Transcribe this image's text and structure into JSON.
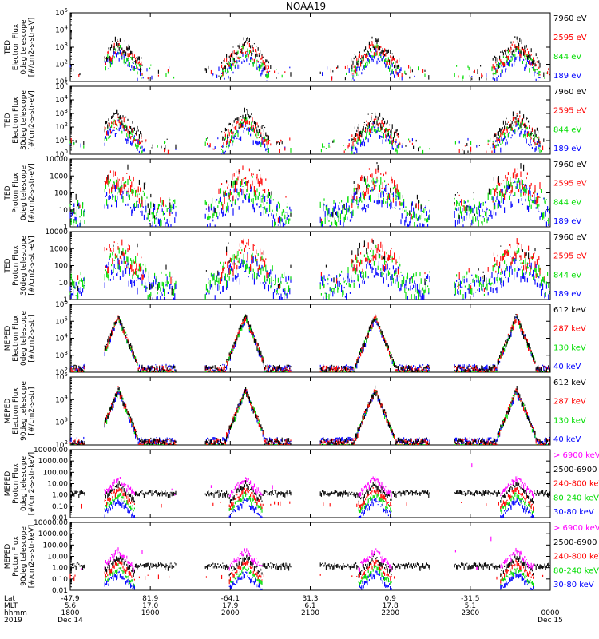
{
  "title": "NOAA19",
  "colors": {
    "black": "#000000",
    "red": "#ff0000",
    "green": "#00dd00",
    "blue": "#0000ff",
    "magenta": "#ff00ff"
  },
  "footer": {
    "row_labels": [
      "Lat",
      "MLT",
      "hhmm",
      "2019"
    ],
    "ticks": [
      {
        "time": "1800",
        "lat": "-47.9",
        "mlt": "5.6",
        "date": "Dec 14"
      },
      {
        "time": "1900",
        "lat": "81.9",
        "mlt": "17.0",
        "date": ""
      },
      {
        "time": "2000",
        "lat": "-64.1",
        "mlt": "17.9",
        "date": ""
      },
      {
        "time": "2100",
        "lat": "31.3",
        "mlt": "6.1",
        "date": ""
      },
      {
        "time": "2200",
        "lat": "0.9",
        "mlt": "17.8",
        "date": ""
      },
      {
        "time": "2300",
        "lat": "-31.5",
        "mlt": "5.1",
        "date": ""
      },
      {
        "time": "0000",
        "lat": "",
        "mlt": "",
        "date": "Dec 15"
      }
    ]
  },
  "chart_data": [
    {
      "type": "scatter",
      "ylabel_lines": [
        "TED",
        "Electron Flux",
        "0deg telescope",
        "[#/cm2-s-str-eV]"
      ],
      "ytick_labels": [
        "10^1",
        "10^2",
        "10^3",
        "10^4",
        "10^5"
      ],
      "ylim": [
        1,
        100000
      ],
      "log": true,
      "legend": [
        {
          "text": "7960 eV",
          "color": "black"
        },
        {
          "text": "2595 eV",
          "color": "red"
        },
        {
          "text": "844 eV",
          "color": "green"
        },
        {
          "text": "189 eV",
          "color": "blue"
        }
      ]
    },
    {
      "type": "scatter",
      "ylabel_lines": [
        "TED",
        "Electron Flux",
        "30deg telescope",
        "[#/cm2-s-str-eV]"
      ],
      "ytick_labels": [
        "10^0",
        "10^1",
        "10^2",
        "10^3",
        "10^4",
        "10^5"
      ],
      "ylim": [
        1,
        100000
      ],
      "log": true,
      "legend": [
        {
          "text": "7960 eV",
          "color": "black"
        },
        {
          "text": "2595 eV",
          "color": "red"
        },
        {
          "text": "844 eV",
          "color": "green"
        },
        {
          "text": "189 eV",
          "color": "blue"
        }
      ]
    },
    {
      "type": "scatter",
      "ylabel_lines": [
        "TED",
        "Proton Flux",
        "0deg telescope",
        "[#/cm2-s-str-eV]"
      ],
      "ytick_labels": [
        "1",
        "10",
        "100",
        "1000",
        "10000"
      ],
      "ylim": [
        1,
        10000
      ],
      "log": true,
      "legend": [
        {
          "text": "7960 eV",
          "color": "black"
        },
        {
          "text": "2595 eV",
          "color": "red"
        },
        {
          "text": "844 eV",
          "color": "green"
        },
        {
          "text": "189 eV",
          "color": "blue"
        }
      ]
    },
    {
      "type": "scatter",
      "ylabel_lines": [
        "TED",
        "Proton Flux",
        "30deg telescope",
        "[#/cm2-s-str-eV]"
      ],
      "ytick_labels": [
        "1",
        "10",
        "100",
        "1000",
        "10000"
      ],
      "ylim": [
        1,
        10000
      ],
      "log": true,
      "legend": [
        {
          "text": "7960 eV",
          "color": "black"
        },
        {
          "text": "2595 eV",
          "color": "red"
        },
        {
          "text": "844 eV",
          "color": "green"
        },
        {
          "text": "189 eV",
          "color": "blue"
        }
      ]
    },
    {
      "type": "scatter",
      "ylabel_lines": [
        "MEPED",
        "Electron Flux",
        "0deg telescope",
        "[#/cm2-s-str]"
      ],
      "ytick_labels": [
        "10^2",
        "10^3",
        "10^4",
        "10^5",
        "10^6"
      ],
      "ylim": [
        100,
        1000000
      ],
      "log": true,
      "legend": [
        {
          "text": "612 keV",
          "color": "black"
        },
        {
          "text": "287 keV",
          "color": "red"
        },
        {
          "text": "130 keV",
          "color": "green"
        },
        {
          "text": "40 keV",
          "color": "blue"
        }
      ]
    },
    {
      "type": "scatter",
      "ylabel_lines": [
        "MEPED",
        "Electron Flux",
        "90deg telescope",
        "[#/cm2-s-str]"
      ],
      "ytick_labels": [
        "10^2",
        "10^3",
        "10^4",
        "10^5"
      ],
      "ylim": [
        100,
        100000
      ],
      "log": true,
      "legend": [
        {
          "text": "612 keV",
          "color": "black"
        },
        {
          "text": "287 keV",
          "color": "red"
        },
        {
          "text": "130 keV",
          "color": "green"
        },
        {
          "text": "40 keV",
          "color": "blue"
        }
      ]
    },
    {
      "type": "scatter",
      "ylabel_lines": [
        "MEPED",
        "Proton Flux",
        "0deg telescope",
        "[#/cm2-s-str-keV]"
      ],
      "ytick_labels": [
        "0.01",
        "0.10",
        "1.00",
        "10.00",
        "100.00",
        "1000.00",
        "10000.00"
      ],
      "ylim": [
        0.01,
        10000
      ],
      "log": true,
      "legend": [
        {
          "text": "> 6900 keV",
          "color": "magenta"
        },
        {
          "text": "2500-6900",
          "color": "black"
        },
        {
          "text": "240-800 keV",
          "color": "red"
        },
        {
          "text": "80-240 keV",
          "color": "green"
        },
        {
          "text": "30-80 keV",
          "color": "blue"
        }
      ]
    },
    {
      "type": "scatter",
      "ylabel_lines": [
        "MEPED",
        "Proton Flux",
        "90deg telescope",
        "[#/cm2-s-str-keV]"
      ],
      "ytick_labels": [
        "0.01",
        "0.10",
        "1.00",
        "10.00",
        "100.00",
        "1000.00",
        "10000.00"
      ],
      "ylim": [
        0.01,
        10000
      ],
      "log": true,
      "legend": [
        {
          "text": "> 6900 keV",
          "color": "magenta"
        },
        {
          "text": "2500-6900",
          "color": "black"
        },
        {
          "text": "240-800 keV",
          "color": "red"
        },
        {
          "text": "80-240 keV",
          "color": "green"
        },
        {
          "text": "30-80 keV",
          "color": "blue"
        }
      ]
    }
  ]
}
